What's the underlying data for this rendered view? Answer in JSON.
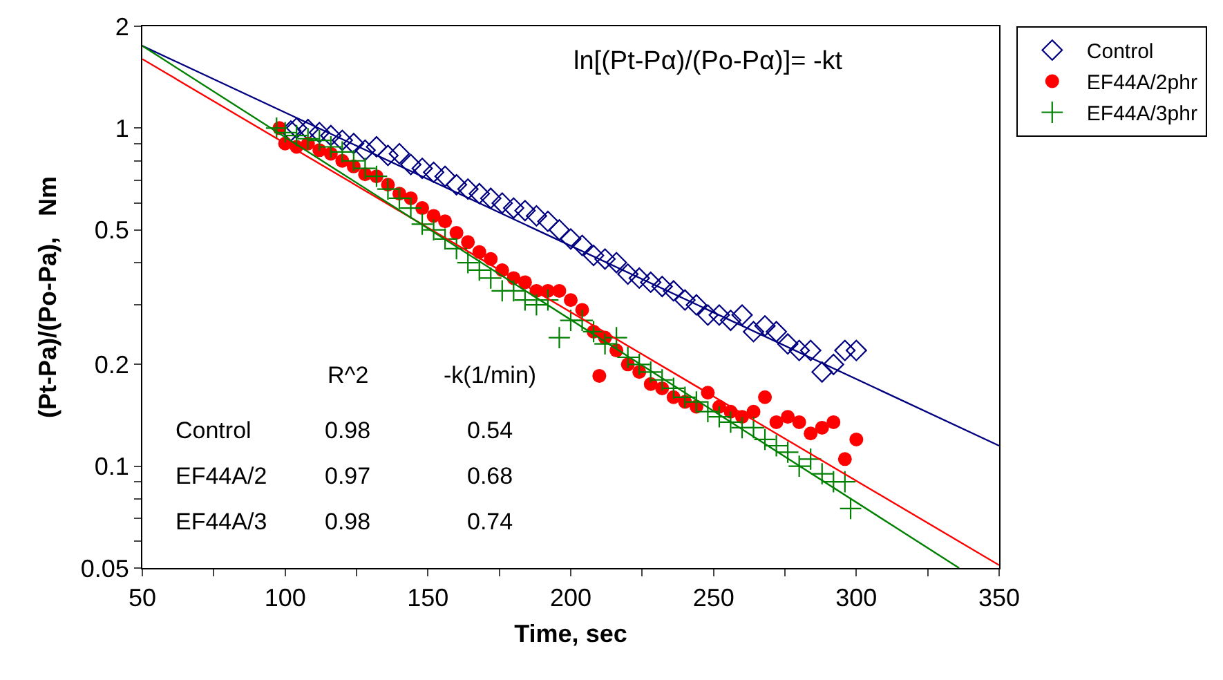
{
  "chart_data": {
    "type": "scatter",
    "xlabel": "Time, sec",
    "ylabel": "(Pt-Pa)/(Po-Pa),   Nm",
    "log": "y",
    "grid": false,
    "legend": "right",
    "xlim": [
      50,
      350
    ],
    "xticks": [
      50,
      {
        "value": 75,
        "label": null
      },
      100,
      {
        "value": 125,
        "label": null
      },
      150,
      {
        "value": 175,
        "label": null
      },
      200,
      {
        "value": 225,
        "label": null
      },
      250,
      {
        "value": 275,
        "label": null
      },
      300,
      {
        "value": 325,
        "label": null
      },
      350
    ],
    "ylim": [
      0.05,
      2
    ],
    "yticks": [
      0.05,
      {
        "value": 0.06,
        "label": null
      },
      {
        "value": 0.07,
        "label": null
      },
      {
        "value": 0.08,
        "label": null
      },
      {
        "value": 0.09,
        "label": null
      },
      0.1,
      0.2,
      {
        "value": 0.3,
        "label": null
      },
      {
        "value": 0.4,
        "label": null
      },
      0.5,
      {
        "value": 0.6,
        "label": null
      },
      {
        "value": 0.7,
        "label": null
      },
      {
        "value": 0.8,
        "label": null
      },
      {
        "value": 0.9,
        "label": null
      },
      1,
      2
    ],
    "series": [
      {
        "name": "Control",
        "color": "#000080",
        "marker": "diamond",
        "x": [
          102,
          104,
          108,
          112,
          116,
          120,
          124,
          128,
          132,
          136,
          140,
          144,
          148,
          152,
          156,
          160,
          164,
          168,
          172,
          176,
          180,
          184,
          188,
          192,
          196,
          200,
          204,
          208,
          212,
          216,
          220,
          224,
          228,
          232,
          236,
          240,
          244,
          248,
          252,
          256,
          260,
          264,
          268,
          272,
          276,
          280,
          284,
          288,
          292,
          296,
          300
        ],
        "values": [
          0.98,
          1.0,
          0.99,
          0.97,
          0.95,
          0.92,
          0.9,
          0.86,
          0.88,
          0.83,
          0.84,
          0.78,
          0.76,
          0.74,
          0.72,
          0.68,
          0.66,
          0.64,
          0.62,
          0.6,
          0.58,
          0.57,
          0.55,
          0.53,
          0.5,
          0.47,
          0.45,
          0.42,
          0.41,
          0.4,
          0.37,
          0.36,
          0.35,
          0.34,
          0.33,
          0.31,
          0.3,
          0.28,
          0.28,
          0.27,
          0.28,
          0.25,
          0.26,
          0.25,
          0.23,
          0.22,
          0.22,
          0.19,
          0.2,
          0.22,
          0.22
        ]
      },
      {
        "name": "EF44A/2phr",
        "color": "#ff0000",
        "marker": "circle",
        "x": [
          98,
          100,
          104,
          108,
          112,
          116,
          120,
          124,
          128,
          132,
          136,
          140,
          144,
          148,
          152,
          156,
          160,
          164,
          168,
          172,
          176,
          180,
          184,
          188,
          192,
          196,
          200,
          204,
          208,
          210,
          212,
          216,
          220,
          224,
          228,
          232,
          236,
          240,
          244,
          248,
          252,
          256,
          260,
          264,
          268,
          272,
          276,
          280,
          284,
          288,
          292,
          296,
          300
        ],
        "values": [
          1.0,
          0.9,
          0.88,
          0.9,
          0.86,
          0.84,
          0.8,
          0.77,
          0.73,
          0.72,
          0.68,
          0.64,
          0.62,
          0.58,
          0.55,
          0.53,
          0.49,
          0.46,
          0.43,
          0.41,
          0.38,
          0.36,
          0.35,
          0.33,
          0.33,
          0.33,
          0.31,
          0.29,
          0.25,
          0.185,
          0.24,
          0.22,
          0.2,
          0.19,
          0.175,
          0.17,
          0.16,
          0.155,
          0.15,
          0.165,
          0.15,
          0.145,
          0.14,
          0.145,
          0.16,
          0.135,
          0.14,
          0.135,
          0.125,
          0.13,
          0.135,
          0.105,
          0.12
        ]
      },
      {
        "name": "EF44A/3phr",
        "color": "#008000",
        "marker": "cross",
        "x": [
          97,
          100,
          104,
          108,
          112,
          116,
          120,
          124,
          128,
          132,
          136,
          140,
          144,
          148,
          152,
          156,
          160,
          164,
          168,
          172,
          176,
          180,
          184,
          188,
          192,
          196,
          200,
          204,
          208,
          212,
          216,
          220,
          224,
          228,
          232,
          236,
          240,
          244,
          248,
          252,
          256,
          260,
          264,
          268,
          272,
          276,
          280,
          284,
          288,
          292,
          296,
          298
        ],
        "values": [
          1.0,
          0.97,
          0.95,
          0.93,
          0.92,
          0.88,
          0.85,
          0.8,
          0.76,
          0.72,
          0.66,
          0.62,
          0.58,
          0.52,
          0.5,
          0.47,
          0.44,
          0.4,
          0.38,
          0.36,
          0.33,
          0.33,
          0.31,
          0.3,
          0.31,
          0.24,
          0.27,
          0.27,
          0.25,
          0.23,
          0.24,
          0.21,
          0.2,
          0.19,
          0.18,
          0.17,
          0.16,
          0.155,
          0.145,
          0.14,
          0.135,
          0.13,
          0.13,
          0.12,
          0.115,
          0.11,
          0.1,
          0.105,
          0.095,
          0.09,
          0.09,
          0.075
        ]
      },
      {
        "type": "line",
        "color": "#000080",
        "x": [
          50,
          350
        ],
        "values": [
          1.75,
          0.115
        ]
      },
      {
        "type": "line",
        "color": "#ff0000",
        "x": [
          50,
          350
        ],
        "values": [
          1.6,
          0.051
        ]
      },
      {
        "type": "line",
        "color": "#008000",
        "x": [
          50,
          336
        ],
        "values": [
          1.75,
          0.05
        ]
      }
    ],
    "annotations": [
      "ln[(Pt-Pα)/(Po-Pα)]= -kt",
      "R^2",
      "-k(1/min)",
      "Control",
      "0.98",
      "0.54",
      "EF44A/2",
      "0.97",
      "0.68",
      "EF44A/3",
      "0.98",
      "0.74"
    ]
  }
}
